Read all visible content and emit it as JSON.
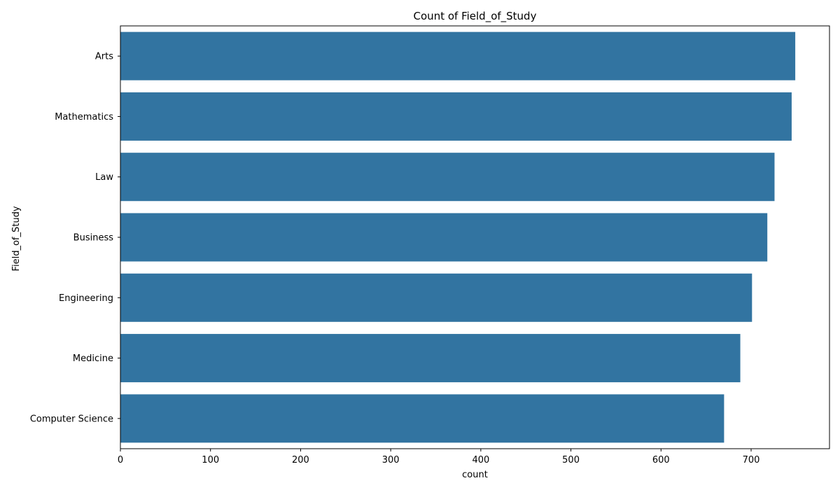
{
  "chart_data": {
    "type": "bar",
    "orientation": "horizontal",
    "title": "Count of Field_of_Study",
    "xlabel": "count",
    "ylabel": "Field_of_Study",
    "categories": [
      "Arts",
      "Mathematics",
      "Law",
      "Business",
      "Engineering",
      "Medicine",
      "Computer Science"
    ],
    "values": [
      749,
      745,
      726,
      718,
      701,
      688,
      670
    ],
    "xlim": [
      0,
      787
    ],
    "xticks": [
      0,
      100,
      200,
      300,
      400,
      500,
      600,
      700
    ],
    "bar_color": "#3274a1",
    "grid": false
  }
}
